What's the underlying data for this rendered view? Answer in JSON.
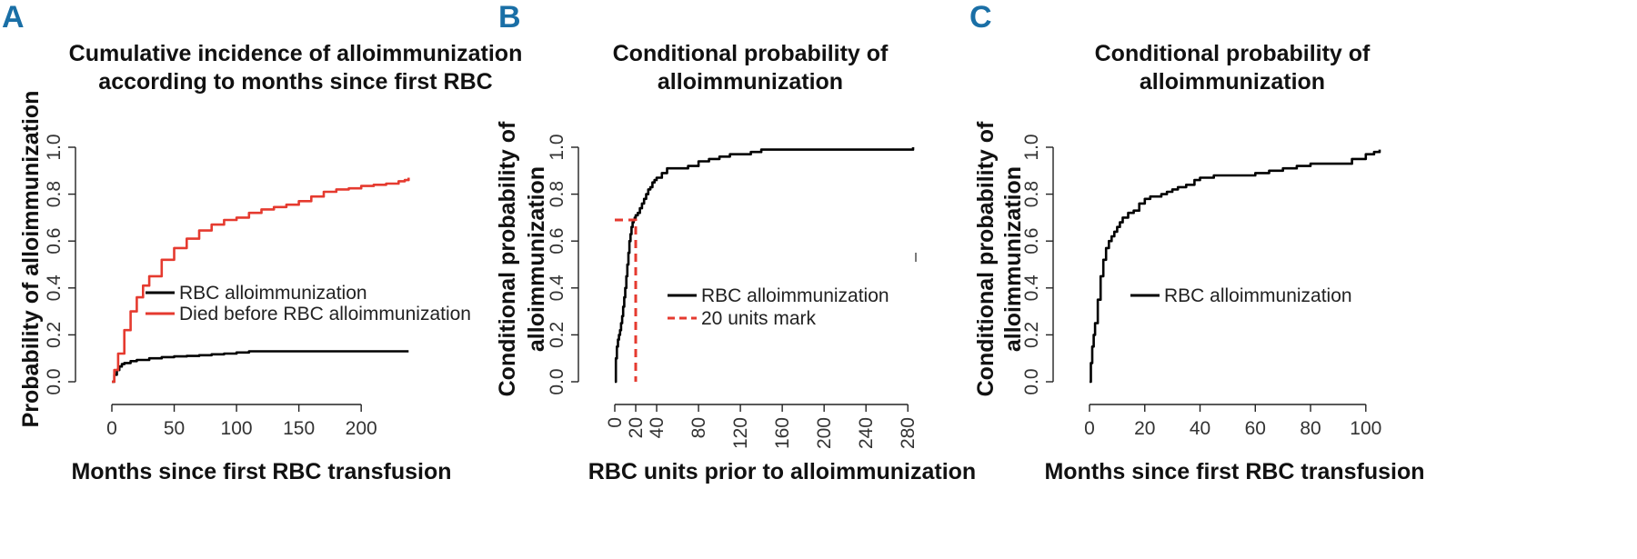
{
  "chart_data": [
    {
      "panel": "A",
      "type": "line",
      "title": [
        "Cumulative incidence of alloimmunization",
        "according to months since first RBC"
      ],
      "xlabel": "Months since first RBC transfusion",
      "ylabel": "Probability of alloimmunization",
      "xlim": [
        0,
        240
      ],
      "ylim": [
        0,
        1
      ],
      "xticks": [
        "0",
        "50",
        "100",
        "150",
        "200"
      ],
      "yticks": [
        "0.0",
        "0.2",
        "0.4",
        "0.6",
        "0.8",
        "1.0"
      ],
      "legend": [
        "RBC alloimmunization",
        "Died before RBC alloimmunization"
      ],
      "series": [
        {
          "name": "RBC alloimmunization",
          "color": "#000000",
          "x": [
            0,
            2,
            4,
            6,
            8,
            10,
            15,
            20,
            30,
            40,
            50,
            60,
            70,
            80,
            90,
            100,
            110,
            130,
            150,
            200,
            238
          ],
          "y": [
            0,
            0.03,
            0.05,
            0.065,
            0.075,
            0.08,
            0.088,
            0.093,
            0.1,
            0.105,
            0.108,
            0.11,
            0.113,
            0.117,
            0.12,
            0.125,
            0.13,
            0.13,
            0.13,
            0.13,
            0.13
          ]
        },
        {
          "name": "Died before RBC alloimmunization",
          "color": "#e53a2f",
          "x": [
            0,
            2,
            5,
            10,
            15,
            20,
            25,
            30,
            40,
            50,
            60,
            70,
            80,
            90,
            100,
            110,
            120,
            130,
            140,
            150,
            160,
            170,
            180,
            190,
            200,
            210,
            220,
            230,
            235,
            238
          ],
          "y": [
            0,
            0.05,
            0.12,
            0.22,
            0.3,
            0.36,
            0.41,
            0.45,
            0.52,
            0.57,
            0.61,
            0.645,
            0.67,
            0.69,
            0.7,
            0.72,
            0.735,
            0.745,
            0.755,
            0.77,
            0.79,
            0.81,
            0.82,
            0.825,
            0.835,
            0.84,
            0.845,
            0.855,
            0.86,
            0.87
          ]
        }
      ]
    },
    {
      "panel": "B",
      "type": "line",
      "title": [
        "Conditional  probability of",
        "alloimmunization"
      ],
      "xlabel": "RBC units prior to alloimmunization",
      "ylabel": [
        "Conditional probability of",
        "alloimmunization"
      ],
      "xlim": [
        0,
        285
      ],
      "ylim": [
        0,
        1
      ],
      "xticks": [
        "0",
        "20",
        "40",
        "80",
        "120",
        "160",
        "200",
        "240",
        "280"
      ],
      "yticks": [
        "0.0",
        "0.2",
        "0.4",
        "0.6",
        "0.8",
        "1.0"
      ],
      "legend": [
        "RBC alloimmunization",
        "20 units mark"
      ],
      "series": [
        {
          "name": "RBC alloimmunization",
          "color": "#000000",
          "x": [
            0,
            1,
            2,
            3,
            4,
            5,
            6,
            7,
            8,
            9,
            10,
            11,
            12,
            13,
            14,
            15,
            16,
            17,
            18,
            19,
            20,
            22,
            24,
            26,
            28,
            30,
            32,
            34,
            36,
            38,
            40,
            45,
            50,
            55,
            60,
            70,
            80,
            90,
            100,
            110,
            120,
            130,
            140,
            160,
            200,
            240,
            280,
            285
          ],
          "y": [
            0,
            0.1,
            0.15,
            0.18,
            0.2,
            0.22,
            0.25,
            0.28,
            0.32,
            0.36,
            0.4,
            0.45,
            0.5,
            0.55,
            0.6,
            0.63,
            0.66,
            0.68,
            0.69,
            0.7,
            0.71,
            0.72,
            0.74,
            0.76,
            0.78,
            0.8,
            0.82,
            0.83,
            0.85,
            0.86,
            0.87,
            0.89,
            0.91,
            0.91,
            0.91,
            0.92,
            0.94,
            0.95,
            0.96,
            0.97,
            0.97,
            0.98,
            0.99,
            0.99,
            0.99,
            0.99,
            0.99,
            1.0
          ]
        },
        {
          "name": "20 units mark",
          "color": "#e53a2f",
          "x": [
            0,
            20,
            20
          ],
          "y": [
            0.69,
            0.69,
            0
          ]
        }
      ]
    },
    {
      "panel": "C",
      "type": "line",
      "title": [
        "Conditional  probability of",
        "alloimmunization"
      ],
      "xlabel": "Months since first RBC transfusion",
      "ylabel": [
        "Conditional probability of",
        "alloimmunization"
      ],
      "xlim": [
        0,
        105
      ],
      "ylim": [
        0,
        1
      ],
      "xticks": [
        "0",
        "20",
        "40",
        "60",
        "80",
        "100"
      ],
      "yticks": [
        "0.0",
        "0.2",
        "0.4",
        "0.6",
        "0.8",
        "1.0"
      ],
      "legend": [
        "RBC alloimmunization"
      ],
      "series": [
        {
          "name": "RBC alloimmunization",
          "color": "#000000",
          "x": [
            0,
            0.5,
            1,
            1.5,
            2,
            3,
            4,
            5,
            6,
            7,
            8,
            9,
            10,
            11,
            12,
            14,
            16,
            18,
            20,
            22,
            24,
            26,
            28,
            30,
            32,
            35,
            38,
            40,
            45,
            50,
            55,
            60,
            65,
            70,
            75,
            80,
            85,
            90,
            95,
            100,
            103,
            105
          ],
          "y": [
            0,
            0.08,
            0.15,
            0.2,
            0.25,
            0.35,
            0.45,
            0.52,
            0.57,
            0.6,
            0.62,
            0.64,
            0.66,
            0.68,
            0.7,
            0.72,
            0.73,
            0.76,
            0.78,
            0.79,
            0.79,
            0.8,
            0.81,
            0.82,
            0.83,
            0.84,
            0.86,
            0.87,
            0.88,
            0.88,
            0.88,
            0.89,
            0.9,
            0.91,
            0.92,
            0.93,
            0.93,
            0.93,
            0.95,
            0.97,
            0.98,
            0.99
          ]
        }
      ]
    }
  ]
}
